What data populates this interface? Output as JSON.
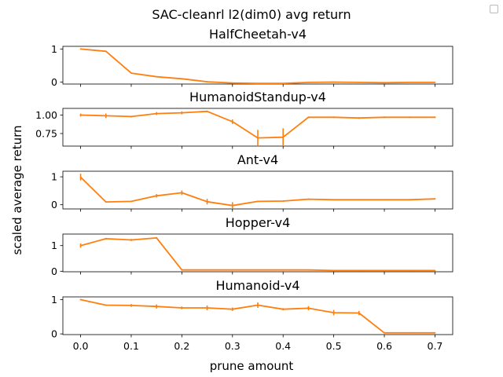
{
  "figure": {
    "suptitle": "SAC-cleanrl l2(dim0) avg return",
    "xlabel": "prune amount",
    "ylabel": "scaled average return",
    "legend_checkbox": true
  },
  "chart_data": [
    {
      "type": "line",
      "title": "HalfCheetah-v4",
      "color": "#ff7f0e",
      "x": [
        0.0,
        0.05,
        0.1,
        0.15,
        0.2,
        0.25,
        0.3,
        0.35,
        0.4,
        0.45,
        0.5,
        0.55,
        0.6,
        0.65,
        0.7
      ],
      "y": [
        1.0,
        0.93,
        0.27,
        0.16,
        0.1,
        0.01,
        -0.03,
        -0.04,
        -0.04,
        -0.01,
        0.0,
        -0.01,
        -0.02,
        -0.01,
        -0.01
      ],
      "err": [
        0,
        0,
        0,
        0,
        0,
        0,
        0,
        0,
        0,
        0,
        0,
        0,
        0,
        0,
        0
      ],
      "ylim": [
        -0.06,
        1.08
      ],
      "yticks": [
        0,
        1
      ],
      "ytick_labels": [
        "0",
        "1"
      ]
    },
    {
      "type": "line",
      "title": "HumanoidStandup-v4",
      "color": "#ff7f0e",
      "x": [
        0.0,
        0.05,
        0.1,
        0.15,
        0.2,
        0.25,
        0.3,
        0.35,
        0.4,
        0.45,
        0.5,
        0.55,
        0.6,
        0.65,
        0.7
      ],
      "y": [
        1.0,
        0.99,
        0.98,
        1.02,
        1.03,
        1.05,
        0.91,
        0.69,
        0.7,
        0.97,
        0.97,
        0.96,
        0.97,
        0.97,
        0.97
      ],
      "err": [
        0.02,
        0.03,
        0.01,
        0.02,
        0.02,
        0.01,
        0.03,
        0.11,
        0.12,
        0.01,
        0.01,
        0.01,
        0.01,
        0.01,
        0.01
      ],
      "ylim": [
        0.58,
        1.09
      ],
      "yticks": [
        0.75,
        1.0
      ],
      "ytick_labels": [
        "0.75",
        "1.00"
      ]
    },
    {
      "type": "line",
      "title": "Ant-v4",
      "color": "#ff7f0e",
      "x": [
        0.0,
        0.05,
        0.1,
        0.15,
        0.2,
        0.25,
        0.3,
        0.35,
        0.4,
        0.45,
        0.5,
        0.55,
        0.6,
        0.65,
        0.7
      ],
      "y": [
        0.99,
        0.1,
        0.12,
        0.32,
        0.43,
        0.11,
        -0.03,
        0.12,
        0.13,
        0.2,
        0.18,
        0.18,
        0.18,
        0.18,
        0.21
      ],
      "err": [
        0.12,
        0.02,
        0.02,
        0.06,
        0.08,
        0.1,
        0.12,
        0.02,
        0.02,
        0.02,
        0.02,
        0.02,
        0.02,
        0.02,
        0.02
      ],
      "ylim": [
        -0.15,
        1.2
      ],
      "yticks": [
        0,
        1
      ],
      "ytick_labels": [
        "0",
        "1"
      ]
    },
    {
      "type": "line",
      "title": "Hopper-v4",
      "color": "#ff7f0e",
      "x": [
        0.0,
        0.05,
        0.1,
        0.15,
        0.2,
        0.25,
        0.3,
        0.35,
        0.4,
        0.45,
        0.5,
        0.55,
        0.6,
        0.65,
        0.7
      ],
      "y": [
        1.0,
        1.27,
        1.22,
        1.3,
        0.05,
        0.05,
        0.05,
        0.05,
        0.05,
        0.05,
        0.03,
        0.03,
        0.03,
        0.03,
        0.03
      ],
      "err": [
        0.08,
        0.03,
        0.04,
        0.03,
        0.01,
        0.01,
        0.01,
        0.01,
        0.01,
        0.01,
        0.01,
        0.01,
        0.01,
        0.01,
        0.01
      ],
      "ylim": [
        -0.02,
        1.45
      ],
      "yticks": [
        0,
        1
      ],
      "ytick_labels": [
        "0",
        "1"
      ]
    },
    {
      "type": "line",
      "title": "Humanoid-v4",
      "color": "#ff7f0e",
      "x": [
        0.0,
        0.05,
        0.1,
        0.15,
        0.2,
        0.25,
        0.3,
        0.35,
        0.4,
        0.45,
        0.5,
        0.55,
        0.6,
        0.65,
        0.7
      ],
      "y": [
        1.0,
        0.84,
        0.83,
        0.8,
        0.76,
        0.76,
        0.72,
        0.84,
        0.72,
        0.75,
        0.62,
        0.61,
        0.03,
        0.03,
        0.03
      ],
      "err": [
        0.02,
        0.02,
        0.04,
        0.06,
        0.04,
        0.07,
        0.05,
        0.08,
        0.03,
        0.06,
        0.08,
        0.06,
        0.01,
        0.01,
        0.01
      ],
      "ylim": [
        -0.02,
        1.08
      ],
      "yticks": [
        0,
        1
      ],
      "ytick_labels": [
        "0",
        "1"
      ]
    }
  ],
  "x_axis": {
    "xlim": [
      -0.035,
      0.735
    ],
    "ticks": [
      0.0,
      0.1,
      0.2,
      0.3,
      0.4,
      0.5,
      0.6,
      0.7
    ],
    "tick_labels": [
      "0.0",
      "0.1",
      "0.2",
      "0.3",
      "0.4",
      "0.5",
      "0.6",
      "0.7"
    ]
  }
}
